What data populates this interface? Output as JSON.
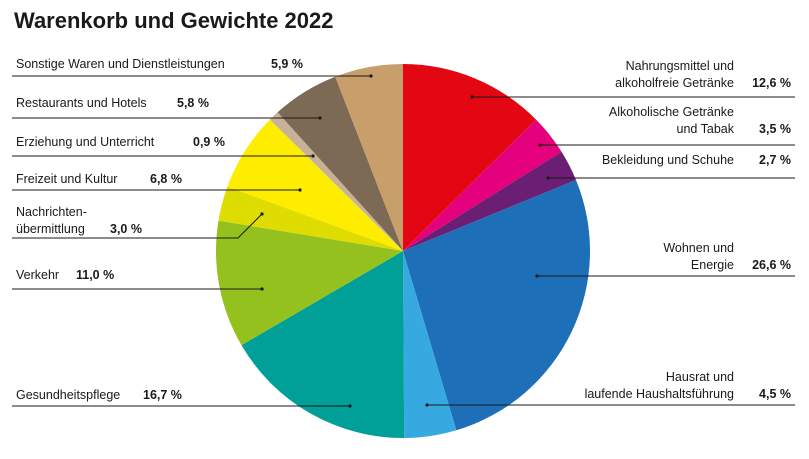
{
  "chart_data": {
    "type": "pie",
    "title": "Warenkorb und Gewichte 2022",
    "slices": [
      {
        "label": "Nahrungsmittel und\nalkoholfreie Getränke",
        "value": 12.6,
        "value_label": "12,6 %",
        "color": "#e30613"
      },
      {
        "label": "Alkoholische Getränke\nund Tabak",
        "value": 3.5,
        "value_label": "3,5 %",
        "color": "#e5007d"
      },
      {
        "label": "Bekleidung und Schuhe",
        "value": 2.7,
        "value_label": "2,7 %",
        "color": "#6a1e74"
      },
      {
        "label": "Wohnen und\nEnergie",
        "value": 26.6,
        "value_label": "26,6 %",
        "color": "#1d6fb8"
      },
      {
        "label": "Hausrat und\nlaufende Haushaltsführung",
        "value": 4.5,
        "value_label": "4,5 %",
        "color": "#36a9e1"
      },
      {
        "label": "Gesundheitspflege",
        "value": 16.7,
        "value_label": "16,7 %",
        "color": "#009f98"
      },
      {
        "label": "Verkehr",
        "value": 11.0,
        "value_label": "11,0 %",
        "color": "#95c11f"
      },
      {
        "label": "Nachrichten-\nübermittlung",
        "value": 3.0,
        "value_label": "3,0 %",
        "color": "#dedc00"
      },
      {
        "label": "Freizeit und Kultur",
        "value": 6.8,
        "value_label": "6,8 %",
        "color": "#ffed00"
      },
      {
        "label": "Erziehung und Unterricht",
        "value": 0.9,
        "value_label": "0,9 %",
        "color": "#c7b299"
      },
      {
        "label": "Restaurants und Hotels",
        "value": 5.8,
        "value_label": "5,8 %",
        "color": "#7d6a55"
      },
      {
        "label": "Sonstige Waren und Dienstleistungen",
        "value": 5.9,
        "value_label": "5,9 %",
        "color": "#c89f6a"
      }
    ]
  }
}
